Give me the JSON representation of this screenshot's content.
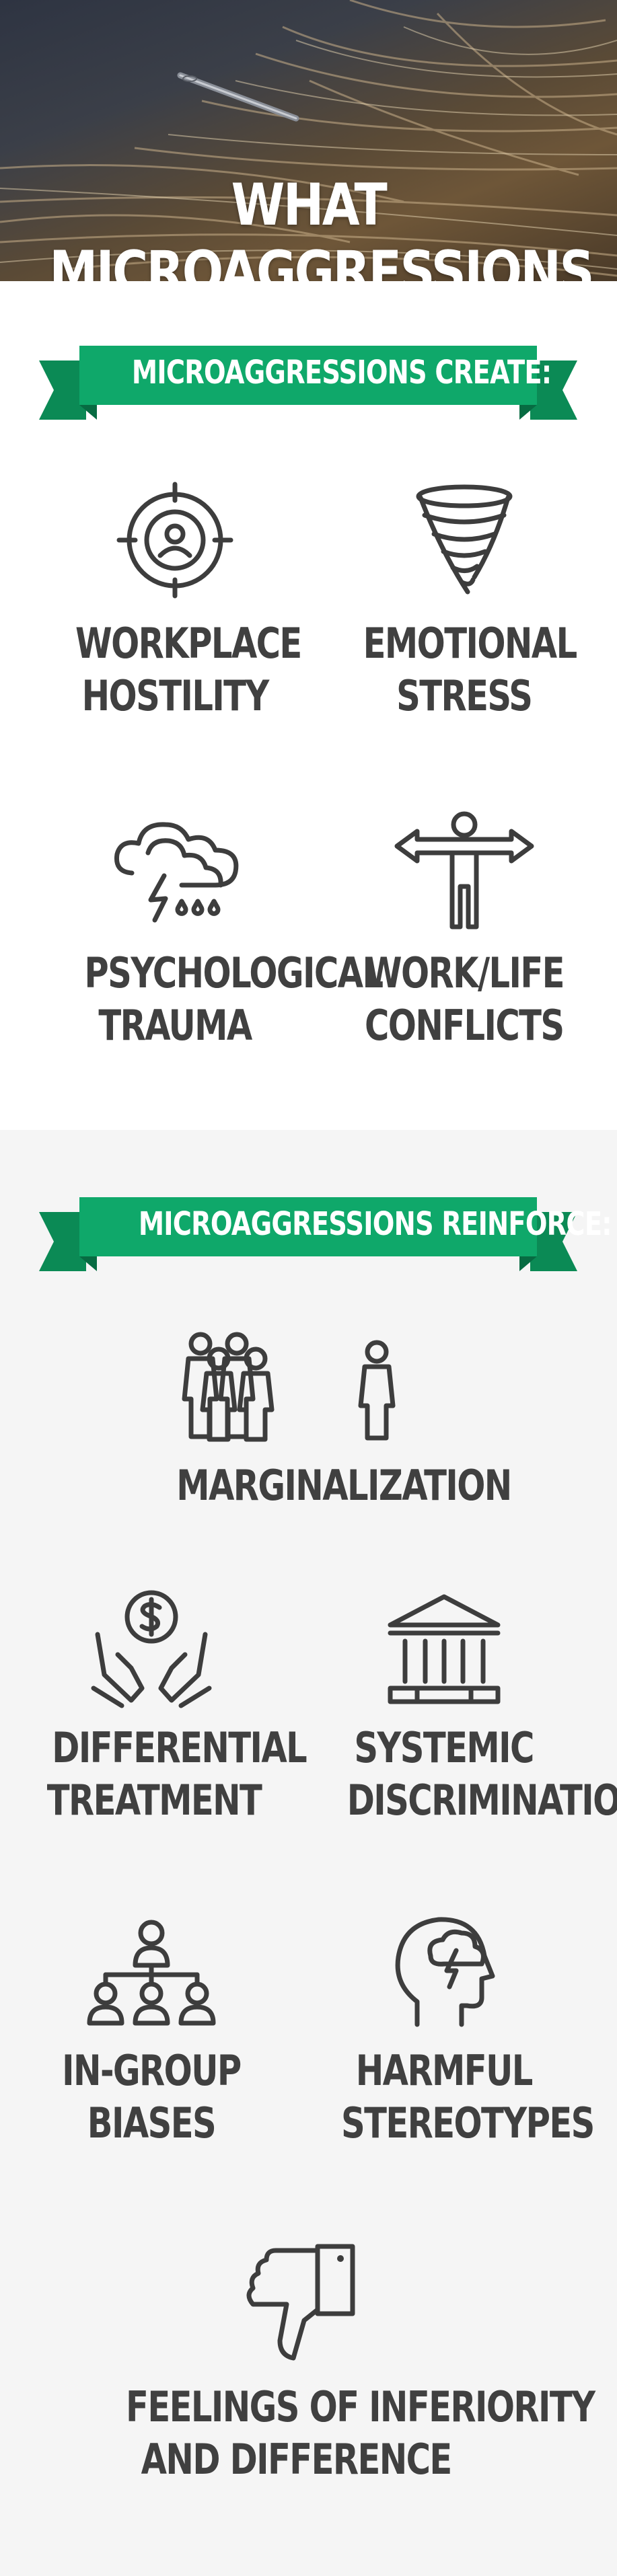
{
  "hero": {
    "title": "WHAT MICROAGGRESSIONS DO"
  },
  "create": {
    "banner": "MICROAGGRESSIONS CREATE:",
    "items": [
      {
        "line1": "WORKPLACE",
        "line2": "HOSTILITY",
        "icon": "target-person-icon"
      },
      {
        "line1": "EMOTIONAL",
        "line2": "STRESS",
        "icon": "tornado-icon"
      },
      {
        "line1": "PSYCHOLOGICAL",
        "line2": "TRAUMA",
        "icon": "storm-cloud-icon"
      },
      {
        "line1": "WORK/LIFE",
        "line2": "CONFLICTS",
        "icon": "crossroads-person-icon"
      }
    ]
  },
  "reinforce": {
    "banner": "MICROAGGRESSIONS REINFORCE:",
    "items": [
      {
        "line1": "MARGINALIZATION",
        "line2": "",
        "icon": "isolated-person-icon"
      },
      {
        "line1": "DIFFERENTIAL",
        "line2": "TREATMENT",
        "icon": "hands-dollar-icon"
      },
      {
        "line1": "SYSTEMIC",
        "line2": "DISCRIMINATION",
        "icon": "institution-building-icon"
      },
      {
        "line1": "IN-GROUP",
        "line2": "BIASES",
        "icon": "org-chart-icon"
      },
      {
        "line1": "HARMFUL",
        "line2": "STEREOTYPES",
        "icon": "head-storm-icon"
      },
      {
        "line1": "FEELINGS OF INFERIORITY",
        "line2": "AND DIFFERENCE",
        "icon": "thumbs-down-icon"
      }
    ]
  },
  "colors": {
    "banner": "#0fa86a",
    "banner_dark": "#0b8a55",
    "text": "#404040",
    "section2_bg": "#f5f5f5"
  }
}
